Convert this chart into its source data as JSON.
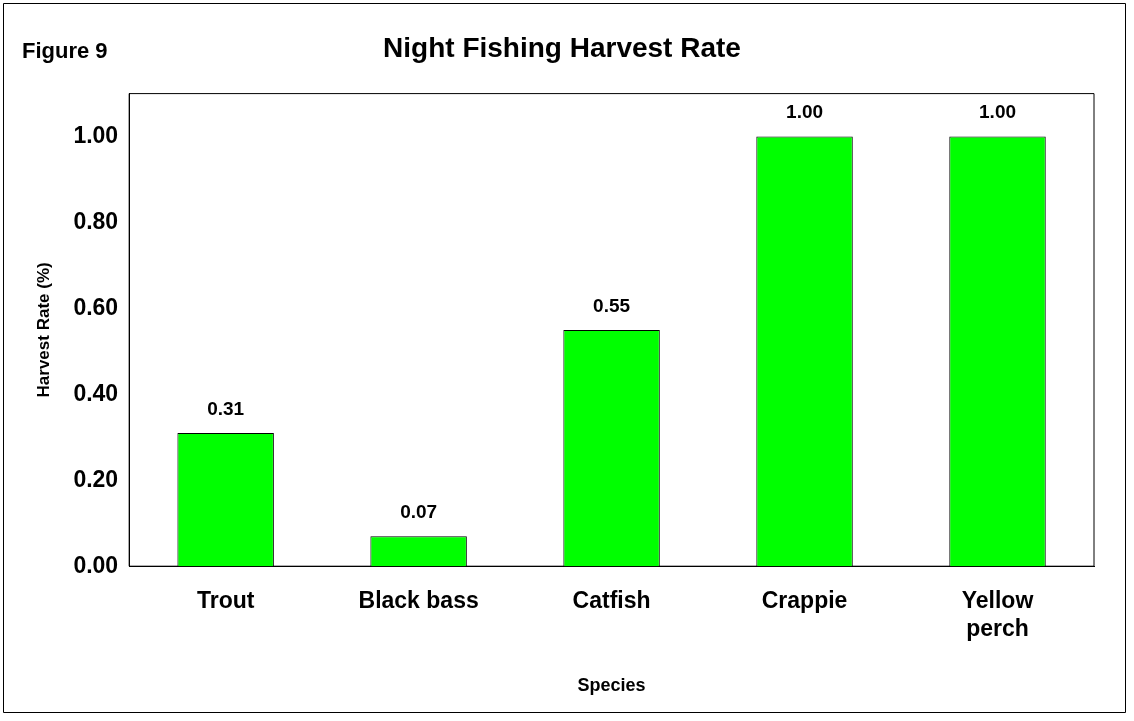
{
  "chart_data": {
    "type": "bar",
    "title": "Night Fishing Harvest Rate",
    "annotations": [
      "Figure 9"
    ],
    "xlabel": "Species",
    "ylabel": "Harvest Rate (%)",
    "categories": [
      "Trout",
      "Black bass",
      "Catfish",
      "Crappie",
      "Yellow perch"
    ],
    "values": [
      0.31,
      0.07,
      0.55,
      1.0,
      1.0
    ],
    "value_labels": [
      "0.31",
      "0.07",
      "0.55",
      "1.00",
      "1.00"
    ],
    "color": "#00ff00",
    "ylim": [
      0,
      1.1
    ],
    "yticks": [
      {
        "value": 0,
        "label": "0.00"
      },
      {
        "value": 0.2,
        "label": "0.20"
      },
      {
        "value": 0.4,
        "label": "0.40"
      },
      {
        "value": 0.6,
        "label": "0.60"
      },
      {
        "value": 0.8,
        "label": "0.80"
      },
      {
        "value": 1.0,
        "label": "1.00"
      }
    ],
    "grid": false,
    "legend": false
  }
}
